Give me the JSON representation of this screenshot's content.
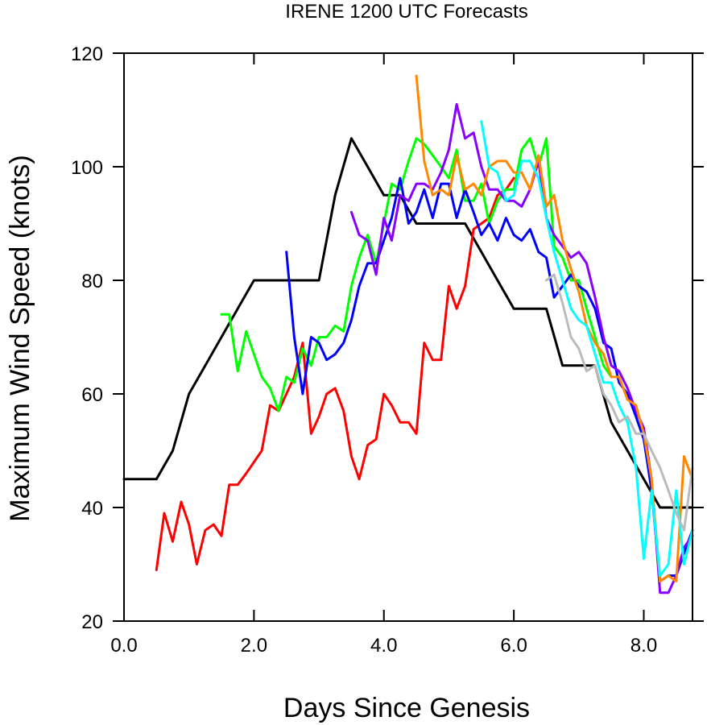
{
  "chart_data": {
    "type": "line",
    "title": "IRENE 1200 UTC Forecasts",
    "xlabel": "Days Since Genesis",
    "ylabel": "Maximum Wind Speed (knots)",
    "xlim": [
      0,
      8.75
    ],
    "ylim": [
      20,
      120
    ],
    "x_ticks": [
      0,
      2,
      4,
      6,
      8
    ],
    "x_tick_labels": [
      "0.0",
      "2.0",
      "4.0",
      "6.0",
      "8.0"
    ],
    "y_ticks": [
      20,
      40,
      60,
      80,
      100,
      120
    ],
    "y_tick_labels": [
      "20",
      "40",
      "60",
      "80",
      "100",
      "120"
    ],
    "grid": false,
    "legend": "none",
    "series": [
      {
        "color": "#000000",
        "points": [
          [
            0,
            45
          ],
          [
            0.5,
            45
          ],
          [
            0.75,
            50
          ],
          [
            1.0,
            60
          ],
          [
            1.25,
            65
          ],
          [
            1.5,
            70
          ],
          [
            1.75,
            75
          ],
          [
            2.0,
            80
          ],
          [
            2.25,
            80
          ],
          [
            2.5,
            80
          ],
          [
            2.75,
            80
          ],
          [
            3.0,
            80
          ],
          [
            3.25,
            95
          ],
          [
            3.5,
            105
          ],
          [
            3.75,
            100
          ],
          [
            4.0,
            95
          ],
          [
            4.25,
            95
          ],
          [
            4.5,
            90
          ],
          [
            4.75,
            90
          ],
          [
            5.0,
            90
          ],
          [
            5.25,
            90
          ],
          [
            5.5,
            85
          ],
          [
            5.75,
            80
          ],
          [
            6.0,
            75
          ],
          [
            6.25,
            75
          ],
          [
            6.5,
            75
          ],
          [
            6.75,
            65
          ],
          [
            7.0,
            65
          ],
          [
            7.25,
            65
          ],
          [
            7.5,
            55
          ],
          [
            7.75,
            50
          ],
          [
            8.0,
            45
          ],
          [
            8.25,
            40
          ],
          [
            8.5,
            40
          ],
          [
            8.75,
            40
          ]
        ]
      },
      {
        "color": "#ff0000",
        "points": [
          [
            0.5,
            29
          ],
          [
            0.62,
            39
          ],
          [
            0.75,
            34
          ],
          [
            0.88,
            41
          ],
          [
            1.0,
            37
          ],
          [
            1.12,
            30
          ],
          [
            1.25,
            36
          ],
          [
            1.38,
            37
          ],
          [
            1.5,
            35
          ],
          [
            1.62,
            44
          ],
          [
            1.75,
            44
          ],
          [
            1.88,
            46
          ],
          [
            2.0,
            48
          ],
          [
            2.12,
            50
          ],
          [
            2.25,
            58
          ],
          [
            2.38,
            57
          ],
          [
            2.5,
            60
          ],
          [
            2.62,
            63
          ],
          [
            2.75,
            69
          ],
          [
            2.88,
            53
          ],
          [
            3.0,
            56
          ],
          [
            3.12,
            60
          ],
          [
            3.25,
            61
          ],
          [
            3.38,
            57
          ],
          [
            3.5,
            49
          ],
          [
            3.62,
            45
          ],
          [
            3.75,
            51
          ],
          [
            3.88,
            52
          ],
          [
            4.0,
            60
          ],
          [
            4.12,
            58
          ],
          [
            4.25,
            55
          ],
          [
            4.38,
            55
          ],
          [
            4.5,
            53
          ],
          [
            4.62,
            69
          ],
          [
            4.75,
            66
          ],
          [
            4.88,
            66
          ],
          [
            5.0,
            79
          ],
          [
            5.12,
            75
          ],
          [
            5.25,
            79
          ],
          [
            5.38,
            89
          ],
          [
            5.5,
            90
          ],
          [
            5.62,
            91
          ],
          [
            5.75,
            95
          ],
          [
            5.88,
            96
          ],
          [
            6.0,
            98
          ]
        ]
      },
      {
        "color": "#00ff00",
        "points": [
          [
            1.5,
            74
          ],
          [
            1.62,
            74
          ],
          [
            1.75,
            64
          ],
          [
            1.88,
            71
          ],
          [
            2.0,
            67
          ],
          [
            2.12,
            63
          ],
          [
            2.25,
            61
          ],
          [
            2.38,
            57
          ],
          [
            2.5,
            63
          ],
          [
            2.62,
            62
          ],
          [
            2.75,
            68
          ],
          [
            2.88,
            65
          ],
          [
            3.0,
            70
          ],
          [
            3.12,
            70
          ],
          [
            3.25,
            72
          ],
          [
            3.38,
            71
          ],
          [
            3.5,
            79
          ],
          [
            3.62,
            84
          ],
          [
            3.75,
            88
          ],
          [
            3.88,
            83
          ],
          [
            4.0,
            90
          ],
          [
            4.12,
            97
          ],
          [
            4.25,
            96
          ],
          [
            4.38,
            101
          ],
          [
            4.5,
            105
          ],
          [
            4.62,
            104
          ],
          [
            4.75,
            102
          ],
          [
            4.88,
            100
          ],
          [
            5.0,
            98
          ],
          [
            5.12,
            103
          ],
          [
            5.25,
            94
          ],
          [
            5.38,
            94
          ],
          [
            5.5,
            97
          ],
          [
            5.62,
            90
          ],
          [
            5.75,
            94
          ],
          [
            5.88,
            96
          ],
          [
            6.0,
            96
          ],
          [
            6.12,
            103
          ],
          [
            6.25,
            105
          ],
          [
            6.38,
            100
          ],
          [
            6.5,
            105
          ],
          [
            6.62,
            86
          ],
          [
            6.75,
            84
          ],
          [
            6.88,
            80
          ],
          [
            7.0,
            80
          ],
          [
            7.12,
            75
          ],
          [
            7.25,
            70
          ],
          [
            7.38,
            65
          ],
          [
            7.5,
            63
          ]
        ]
      },
      {
        "color": "#0000ff",
        "points": [
          [
            2.5,
            85
          ],
          [
            2.62,
            70
          ],
          [
            2.75,
            60
          ],
          [
            2.88,
            70
          ],
          [
            3.0,
            69
          ],
          [
            3.12,
            66
          ],
          [
            3.25,
            67
          ],
          [
            3.38,
            69
          ],
          [
            3.5,
            73
          ],
          [
            3.62,
            79
          ],
          [
            3.75,
            83
          ],
          [
            3.88,
            83
          ],
          [
            4.0,
            87
          ],
          [
            4.12,
            91
          ],
          [
            4.25,
            98
          ],
          [
            4.38,
            90
          ],
          [
            4.5,
            92
          ],
          [
            4.62,
            96
          ],
          [
            4.75,
            91
          ],
          [
            4.88,
            97
          ],
          [
            5.0,
            97
          ],
          [
            5.12,
            91
          ],
          [
            5.25,
            96
          ],
          [
            5.38,
            92
          ],
          [
            5.5,
            88
          ],
          [
            5.62,
            90
          ],
          [
            5.75,
            87
          ],
          [
            5.88,
            91
          ],
          [
            6.0,
            88
          ],
          [
            6.12,
            87
          ],
          [
            6.25,
            89
          ],
          [
            6.38,
            85
          ],
          [
            6.5,
            84
          ],
          [
            6.62,
            77
          ],
          [
            6.75,
            79
          ],
          [
            6.88,
            81
          ],
          [
            7.0,
            79
          ],
          [
            7.12,
            78
          ],
          [
            7.25,
            75
          ],
          [
            7.38,
            69
          ],
          [
            7.5,
            68
          ],
          [
            7.62,
            62
          ],
          [
            7.75,
            60
          ],
          [
            7.88,
            56
          ],
          [
            8.0,
            52
          ],
          [
            8.12,
            43
          ],
          [
            8.25,
            27
          ],
          [
            8.38,
            28
          ],
          [
            8.5,
            28
          ],
          [
            8.62,
            32
          ],
          [
            8.75,
            36
          ]
        ]
      },
      {
        "color": "#8800ff",
        "points": [
          [
            3.5,
            92
          ],
          [
            3.62,
            88
          ],
          [
            3.75,
            87
          ],
          [
            3.88,
            81
          ],
          [
            4.0,
            91
          ],
          [
            4.12,
            87
          ],
          [
            4.25,
            95
          ],
          [
            4.38,
            94
          ],
          [
            4.5,
            97
          ],
          [
            4.62,
            97
          ],
          [
            4.75,
            96
          ],
          [
            4.88,
            99
          ],
          [
            5.0,
            103
          ],
          [
            5.12,
            111
          ],
          [
            5.25,
            105
          ],
          [
            5.38,
            106
          ],
          [
            5.5,
            100
          ],
          [
            5.62,
            96
          ],
          [
            5.75,
            96
          ],
          [
            5.88,
            94
          ],
          [
            6.0,
            94
          ],
          [
            6.12,
            93
          ],
          [
            6.25,
            96
          ],
          [
            6.38,
            101
          ],
          [
            6.5,
            91
          ],
          [
            6.62,
            88
          ],
          [
            6.75,
            86
          ],
          [
            6.88,
            84
          ],
          [
            7.0,
            85
          ],
          [
            7.12,
            83
          ],
          [
            7.25,
            77
          ],
          [
            7.38,
            70
          ],
          [
            7.5,
            65
          ],
          [
            7.62,
            64
          ],
          [
            7.75,
            61
          ],
          [
            7.88,
            57
          ],
          [
            8.0,
            54
          ],
          [
            8.12,
            45
          ],
          [
            8.25,
            25
          ],
          [
            8.38,
            25
          ],
          [
            8.5,
            28
          ],
          [
            8.62,
            33
          ],
          [
            8.75,
            35
          ]
        ]
      },
      {
        "color": "#ff8800",
        "points": [
          [
            4.5,
            116
          ],
          [
            4.62,
            101
          ],
          [
            4.75,
            95
          ],
          [
            4.88,
            96
          ],
          [
            5.0,
            95
          ],
          [
            5.12,
            102
          ],
          [
            5.25,
            96
          ],
          [
            5.38,
            97
          ],
          [
            5.5,
            95
          ],
          [
            5.62,
            100
          ],
          [
            5.75,
            101
          ],
          [
            5.88,
            101
          ],
          [
            6.0,
            99
          ],
          [
            6.12,
            99
          ],
          [
            6.25,
            96
          ],
          [
            6.38,
            102
          ],
          [
            6.5,
            93
          ],
          [
            6.62,
            95
          ],
          [
            6.75,
            87
          ],
          [
            6.88,
            82
          ],
          [
            7.0,
            78
          ],
          [
            7.12,
            72
          ],
          [
            7.25,
            69
          ],
          [
            7.38,
            67
          ],
          [
            7.5,
            63
          ],
          [
            7.62,
            63
          ],
          [
            7.75,
            59
          ],
          [
            7.88,
            58
          ],
          [
            8.0,
            53
          ],
          [
            8.12,
            45
          ],
          [
            8.25,
            27
          ],
          [
            8.38,
            28
          ],
          [
            8.5,
            27
          ],
          [
            8.62,
            49
          ],
          [
            8.75,
            45
          ]
        ]
      },
      {
        "color": "#00ffff",
        "points": [
          [
            5.5,
            108
          ],
          [
            5.62,
            100
          ],
          [
            5.75,
            99
          ],
          [
            5.88,
            94
          ],
          [
            6.0,
            95
          ],
          [
            6.12,
            101
          ],
          [
            6.25,
            101
          ],
          [
            6.38,
            98
          ],
          [
            6.5,
            91
          ],
          [
            6.62,
            85
          ],
          [
            6.75,
            80
          ],
          [
            6.88,
            75
          ],
          [
            7.0,
            73
          ],
          [
            7.12,
            72
          ],
          [
            7.25,
            67
          ],
          [
            7.38,
            62
          ],
          [
            7.5,
            62
          ],
          [
            7.62,
            58
          ],
          [
            7.75,
            55
          ],
          [
            7.88,
            47
          ],
          [
            8.0,
            31
          ],
          [
            8.12,
            43
          ],
          [
            8.25,
            28
          ],
          [
            8.38,
            30
          ],
          [
            8.5,
            43
          ],
          [
            8.62,
            30
          ],
          [
            8.75,
            36
          ]
        ]
      },
      {
        "color": "#bbbbbb",
        "points": [
          [
            6.5,
            80
          ],
          [
            6.62,
            81
          ],
          [
            6.75,
            76
          ],
          [
            6.88,
            70
          ],
          [
            7.0,
            68
          ],
          [
            7.12,
            64
          ],
          [
            7.25,
            65
          ],
          [
            7.38,
            60
          ],
          [
            7.5,
            58
          ],
          [
            7.62,
            55
          ],
          [
            7.75,
            56
          ],
          [
            7.88,
            53
          ],
          [
            8.0,
            53
          ],
          [
            8.12,
            50
          ],
          [
            8.25,
            47
          ],
          [
            8.38,
            43
          ],
          [
            8.5,
            39
          ],
          [
            8.62,
            36
          ],
          [
            8.75,
            47
          ]
        ]
      }
    ]
  }
}
